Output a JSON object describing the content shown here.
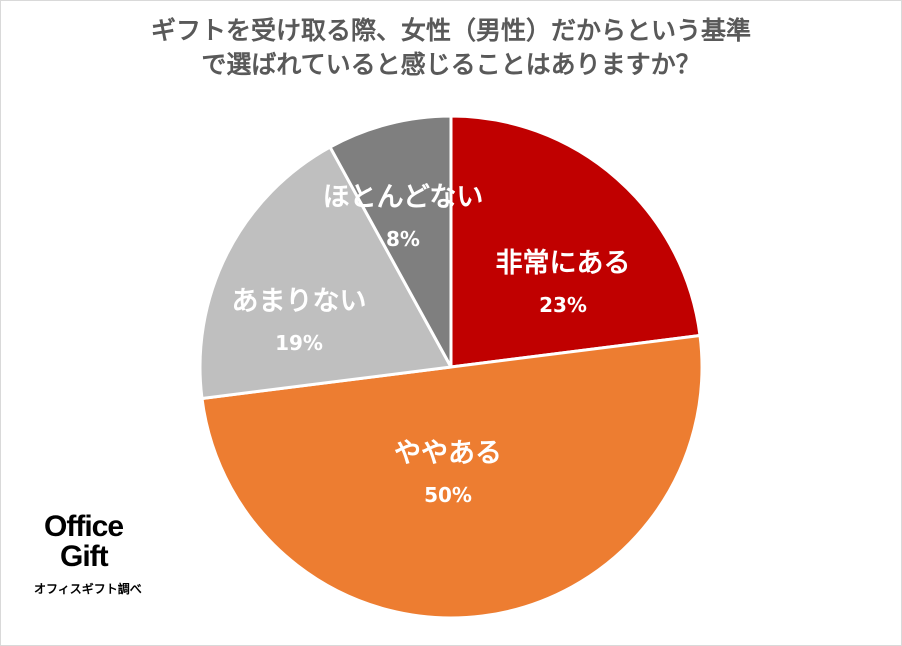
{
  "title_lines": [
    "ギフトを受け取る際、女性（男性）だからという基準",
    "で選ばれていると感じることはありますか？"
  ],
  "chart_data": {
    "type": "pie",
    "title": "ギフトを受け取る際、女性（男性）だからという基準で選ばれていると感じることはありますか？",
    "start": "12 o'clock",
    "direction": "clockwise",
    "slices": [
      {
        "label": "非常にある",
        "value": 23,
        "value_label": "23%",
        "color": "#C00000",
        "label_color": "#ffffff"
      },
      {
        "label": "ややある",
        "value": 50,
        "value_label": "50%",
        "color": "#ED7D31",
        "label_color": "#ffffff"
      },
      {
        "label": "あまりない",
        "value": 19,
        "value_label": "19%",
        "color": "#BFBFBF",
        "label_color": "#ffffff"
      },
      {
        "label": "ほとんどない",
        "value": 8,
        "value_label": "8%",
        "color": "#7F7F7F",
        "label_color": "#ffffff"
      }
    ]
  },
  "logo": {
    "line1": "Office",
    "line2": "Gift",
    "credit": "オフィスギフト調べ"
  }
}
